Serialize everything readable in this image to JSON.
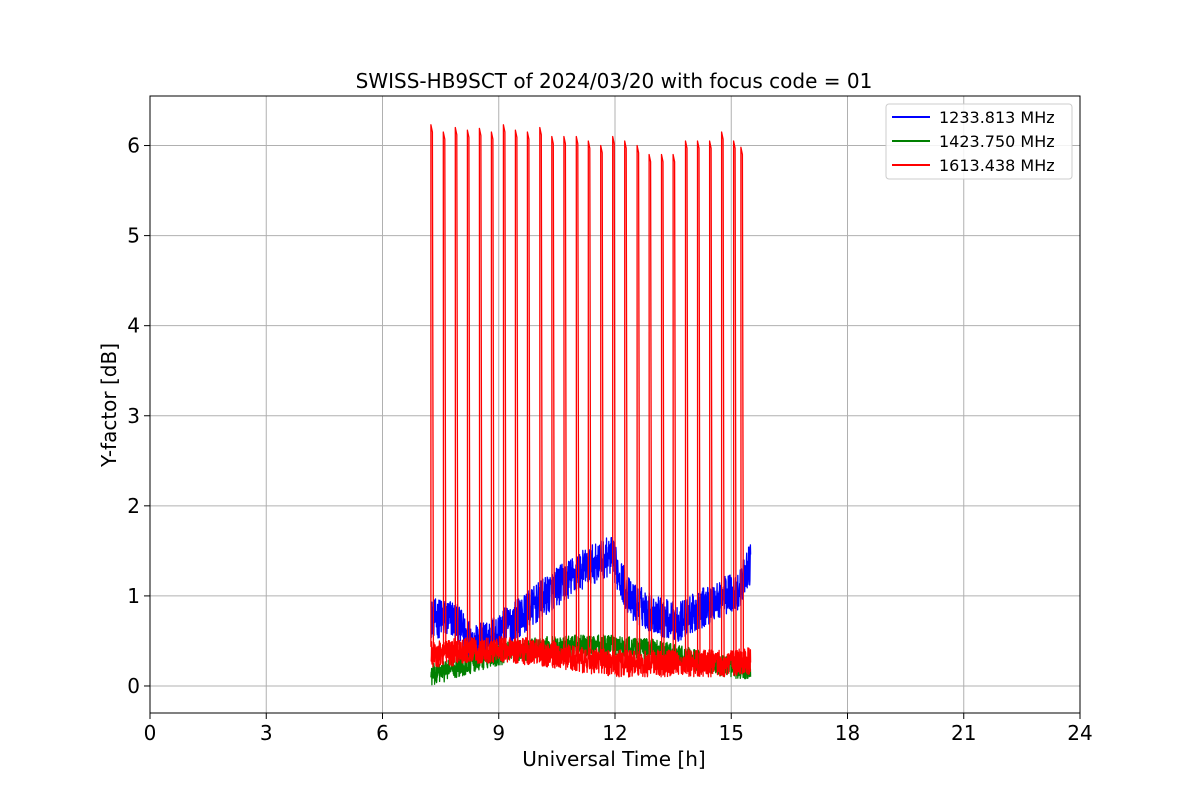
{
  "chart_data": {
    "type": "line",
    "title": "SWISS-HB9SCT of 2024/03/20 with focus code = 01",
    "xlabel": "Universal Time [h]",
    "ylabel": "Y-factor [dB]",
    "xlim": [
      0,
      24
    ],
    "ylim": [
      -0.3,
      6.55
    ],
    "xticks": [
      0,
      3,
      6,
      9,
      12,
      15,
      18,
      21,
      24
    ],
    "yticks": [
      0,
      1,
      2,
      3,
      4,
      5,
      6
    ],
    "grid": true,
    "legend_position": "top-right",
    "series": [
      {
        "name": "1233.813 MHz",
        "color": "#0000ff",
        "time_range": [
          7.25,
          15.5
        ],
        "baseline": [
          [
            7.25,
            0.75
          ],
          [
            7.8,
            0.75
          ],
          [
            8.4,
            0.45
          ],
          [
            9.0,
            0.6
          ],
          [
            9.8,
            0.85
          ],
          [
            10.5,
            1.1
          ],
          [
            11.2,
            1.3
          ],
          [
            11.9,
            1.45
          ],
          [
            12.4,
            0.95
          ],
          [
            13.0,
            0.8
          ],
          [
            13.6,
            0.7
          ],
          [
            14.2,
            0.85
          ],
          [
            14.8,
            1.0
          ],
          [
            15.2,
            1.05
          ],
          [
            15.4,
            1.3
          ],
          [
            15.5,
            1.35
          ]
        ],
        "noise_amplitude": 0.22
      },
      {
        "name": "1423.750 MHz",
        "color": "#008000",
        "time_range": [
          7.25,
          15.5
        ],
        "baseline": [
          [
            7.25,
            0.12
          ],
          [
            8.0,
            0.22
          ],
          [
            9.0,
            0.35
          ],
          [
            10.0,
            0.42
          ],
          [
            11.0,
            0.45
          ],
          [
            12.0,
            0.45
          ],
          [
            13.0,
            0.4
          ],
          [
            14.0,
            0.3
          ],
          [
            15.0,
            0.2
          ],
          [
            15.5,
            0.2
          ]
        ],
        "noise_amplitude": 0.12
      },
      {
        "name": "1613.438 MHz",
        "color": "#ff0000",
        "time_range": [
          7.25,
          15.5
        ],
        "baseline": [
          [
            7.25,
            0.35
          ],
          [
            8.0,
            0.38
          ],
          [
            9.0,
            0.4
          ],
          [
            10.0,
            0.38
          ],
          [
            11.0,
            0.3
          ],
          [
            12.0,
            0.25
          ],
          [
            13.0,
            0.25
          ],
          [
            14.0,
            0.25
          ],
          [
            15.0,
            0.25
          ],
          [
            15.5,
            0.28
          ]
        ],
        "noise_amplitude": 0.15,
        "spikes": [
          [
            7.25,
            6.23
          ],
          [
            7.57,
            6.15
          ],
          [
            7.88,
            6.2
          ],
          [
            8.19,
            6.17
          ],
          [
            8.5,
            6.19
          ],
          [
            8.81,
            6.15
          ],
          [
            9.12,
            6.23
          ],
          [
            9.43,
            6.17
          ],
          [
            9.74,
            6.15
          ],
          [
            10.06,
            6.2
          ],
          [
            10.37,
            6.1
          ],
          [
            10.68,
            6.1
          ],
          [
            11.0,
            6.1
          ],
          [
            11.31,
            6.05
          ],
          [
            11.63,
            6.0
          ],
          [
            11.94,
            6.1
          ],
          [
            12.25,
            6.05
          ],
          [
            12.57,
            6.0
          ],
          [
            12.88,
            5.9
          ],
          [
            13.2,
            5.9
          ],
          [
            13.5,
            5.9
          ],
          [
            13.82,
            6.05
          ],
          [
            14.13,
            6.05
          ],
          [
            14.44,
            6.05
          ],
          [
            14.75,
            6.15
          ],
          [
            15.06,
            6.05
          ],
          [
            15.25,
            5.98
          ]
        ]
      }
    ]
  }
}
